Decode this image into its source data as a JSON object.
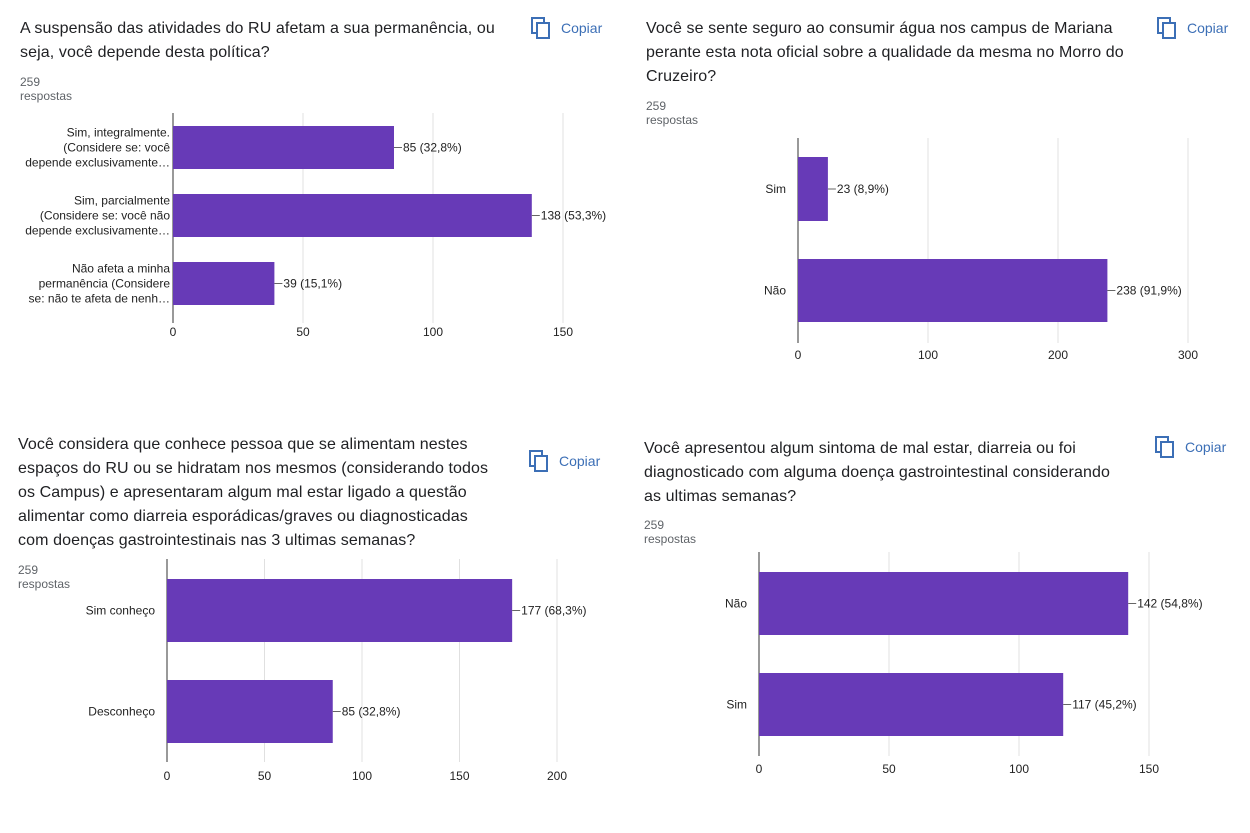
{
  "copy_label": "Copiar",
  "colors": {
    "bar": "#673ab7",
    "grid": "#e0e0e0",
    "link": "#3c6fb6"
  },
  "icon": "copy-icon",
  "panels": [
    {
      "title_lines": [
        "A suspensão das atividades do RU afetam a sua permanência, ou",
        "seja, você depende desta política?"
      ],
      "responses": "259 respostas"
    },
    {
      "title_lines": [
        "Você se sente seguro ao consumir água nos campus de Mariana",
        "perante esta nota oficial sobre a qualidade da mesma no Morro do",
        "Cruzeiro?"
      ],
      "responses": "259 respostas"
    },
    {
      "title_lines": [
        "Você considera que conhece pessoa que se alimentam nestes",
        "espaços do RU  ou se hidratam nos mesmos (considerando todos",
        "os Campus) e apresentaram algum mal estar ligado a questão",
        "alimentar como diarreia esporádicas/graves ou diagnosticadas",
        "com doenças gastrointestinais nas 3 ultimas semanas?"
      ],
      "responses": "259 respostas"
    },
    {
      "title_lines": [
        "Você apresentou algum sintoma de mal estar, diarreia ou foi",
        "diagnosticado com alguma doença gastrointestinal considerando",
        "as ultimas semanas?"
      ],
      "responses": "259 respostas"
    }
  ],
  "chart_data": [
    {
      "type": "bar",
      "orientation": "horizontal",
      "categories": [
        [
          "Sim, integralmente.",
          "(Considere se: você",
          "depende exclusivamente…"
        ],
        [
          "Sim, parcialmente",
          "(Considere se: você não",
          "depende exclusivamente…"
        ],
        [
          "Não afeta a minha",
          "permanência (Considere",
          "se: não te afeta de nenh…"
        ]
      ],
      "values": [
        85,
        138,
        39
      ],
      "value_labels": [
        "85 (32,8%)",
        "138 (53,3%)",
        "39 (15,1%)"
      ],
      "xlim": [
        0,
        150
      ],
      "xticks": [
        0,
        50,
        100,
        150
      ]
    },
    {
      "type": "bar",
      "orientation": "horizontal",
      "categories": [
        [
          "Sim"
        ],
        [
          "Não"
        ]
      ],
      "values": [
        23,
        238
      ],
      "value_labels": [
        "23 (8,9%)",
        "238 (91,9%)"
      ],
      "xlim": [
        0,
        300
      ],
      "xticks": [
        0,
        100,
        200,
        300
      ]
    },
    {
      "type": "bar",
      "orientation": "horizontal",
      "categories": [
        [
          "Sim conheço"
        ],
        [
          "Desconheço"
        ]
      ],
      "values": [
        177,
        85
      ],
      "value_labels": [
        "177 (68,3%)",
        "85 (32,8%)"
      ],
      "xlim": [
        0,
        200
      ],
      "xticks": [
        0,
        50,
        100,
        150,
        200
      ]
    },
    {
      "type": "bar",
      "orientation": "horizontal",
      "categories": [
        [
          "Não"
        ],
        [
          "Sim"
        ]
      ],
      "values": [
        142,
        117
      ],
      "value_labels": [
        "142 (54,8%)",
        "117 (45,2%)"
      ],
      "xlim": [
        0,
        150
      ],
      "xticks": [
        0,
        50,
        100,
        150
      ]
    }
  ]
}
